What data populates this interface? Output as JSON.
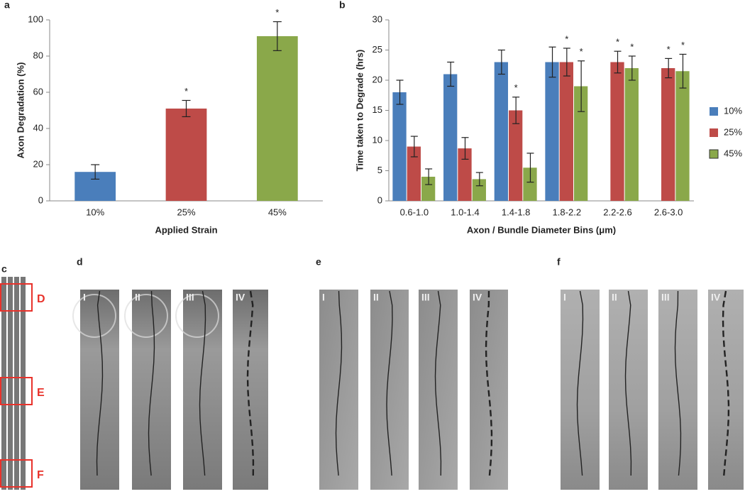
{
  "chart_data": [
    {
      "type": "bar",
      "panel": "a",
      "ylabel": "Axon Degradation (%)",
      "xlabel": "Applied Strain",
      "categories": [
        "10%",
        "25%",
        "45%"
      ],
      "values": [
        16,
        51,
        91
      ],
      "errors": [
        4,
        4.5,
        8
      ],
      "significance": [
        null,
        "*",
        "*"
      ],
      "colors": [
        "#4a7ebb",
        "#be4b48",
        "#8aa84a"
      ],
      "ylim": [
        0,
        100
      ],
      "yticks": [
        0,
        20,
        40,
        60,
        80,
        100
      ]
    },
    {
      "type": "bar",
      "panel": "b",
      "ylabel": "Time taken to Degrade (hrs)",
      "xlabel": "Axon / Bundle Diameter Bins (μm)",
      "categories": [
        "0.6-1.0",
        "1.0-1.4",
        "1.4-1.8",
        "1.8-2.2",
        "2.2-2.6",
        "2.6-3.0"
      ],
      "series": [
        {
          "name": "10%",
          "color": "#4a7ebb",
          "values": [
            18,
            21,
            23,
            23,
            null,
            null
          ],
          "errors": [
            2,
            2,
            2,
            2.5,
            null,
            null
          ],
          "significance": [
            null,
            null,
            null,
            null,
            null,
            null
          ]
        },
        {
          "name": "25%",
          "color": "#be4b48",
          "values": [
            9,
            8.7,
            15,
            23,
            23,
            22
          ],
          "errors": [
            1.7,
            1.8,
            2.2,
            2.3,
            1.8,
            1.6
          ],
          "significance": [
            null,
            null,
            "*",
            "*",
            "*",
            "*"
          ]
        },
        {
          "name": "45%",
          "color": "#8aa84a",
          "values": [
            4,
            3.6,
            5.5,
            19,
            22,
            21.5
          ],
          "errors": [
            1.3,
            1.1,
            2.4,
            4.2,
            2,
            2.8
          ],
          "significance": [
            null,
            null,
            null,
            "*",
            "*",
            "*"
          ]
        }
      ],
      "ylim": [
        0,
        30
      ],
      "yticks": [
        0,
        5,
        10,
        15,
        20,
        25,
        30
      ],
      "legend": "right"
    }
  ],
  "panels": [
    {
      "label": "c",
      "regions": [
        "D",
        "E",
        "F"
      ]
    },
    {
      "label": "d",
      "frames": [
        "I",
        "II",
        "III",
        "IV"
      ]
    },
    {
      "label": "e",
      "frames": [
        "I",
        "II",
        "III",
        "IV"
      ]
    },
    {
      "label": "f",
      "frames": [
        "I",
        "II",
        "III",
        "IV"
      ]
    }
  ]
}
